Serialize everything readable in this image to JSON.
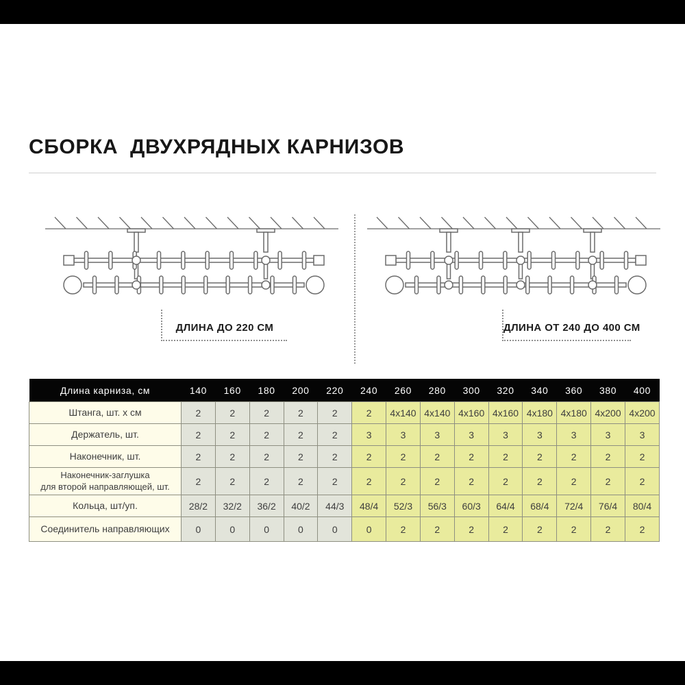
{
  "page": {
    "title": "СБОРКА  ДВУХРЯДНЫХ КАРНИЗОВ"
  },
  "diagrams": [
    {
      "label": "ДЛИНА ДО 220 СМ",
      "brackets": 2
    },
    {
      "label": "ДЛИНА ОТ 240 ДО 400 СМ",
      "brackets": 3
    }
  ],
  "table": {
    "header_label": "Длина карниза, см",
    "columns": [
      "140",
      "160",
      "180",
      "200",
      "220",
      "240",
      "260",
      "280",
      "300",
      "320",
      "340",
      "360",
      "380",
      "400"
    ],
    "rows": [
      {
        "label": "Штанга, шт. х см",
        "values": [
          "2",
          "2",
          "2",
          "2",
          "2",
          "2",
          "4x140",
          "4x140",
          "4x160",
          "4x160",
          "4x180",
          "4x180",
          "4x200",
          "4x200"
        ]
      },
      {
        "label": "Держатель, шт.",
        "values": [
          "2",
          "2",
          "2",
          "2",
          "2",
          "3",
          "3",
          "3",
          "3",
          "3",
          "3",
          "3",
          "3",
          "3"
        ]
      },
      {
        "label": "Наконечник, шт.",
        "values": [
          "2",
          "2",
          "2",
          "2",
          "2",
          "2",
          "2",
          "2",
          "2",
          "2",
          "2",
          "2",
          "2",
          "2"
        ]
      },
      {
        "label": "Наконечник-заглушка\nдля второй направляющей, шт.",
        "values": [
          "2",
          "2",
          "2",
          "2",
          "2",
          "2",
          "2",
          "2",
          "2",
          "2",
          "2",
          "2",
          "2",
          "2"
        ]
      },
      {
        "label": "Кольца, шт/уп.",
        "values": [
          "28/2",
          "32/2",
          "36/2",
          "40/2",
          "44/3",
          "48/4",
          "52/3",
          "56/3",
          "60/3",
          "64/4",
          "68/4",
          "72/4",
          "76/4",
          "80/4"
        ]
      },
      {
        "label": "Соединитель направляющих",
        "values": [
          "0",
          "0",
          "0",
          "0",
          "0",
          "0",
          "2",
          "2",
          "2",
          "2",
          "2",
          "2",
          "2",
          "2"
        ]
      }
    ],
    "gray_columns_count": 5
  },
  "colors": {
    "header_bg": "#050505",
    "label_bg": "#fefce9",
    "short_group_bg": "#e2e4da",
    "long_group_bg": "#e9eb9d",
    "border": "#8e8f81",
    "letterbox": "#000000"
  }
}
